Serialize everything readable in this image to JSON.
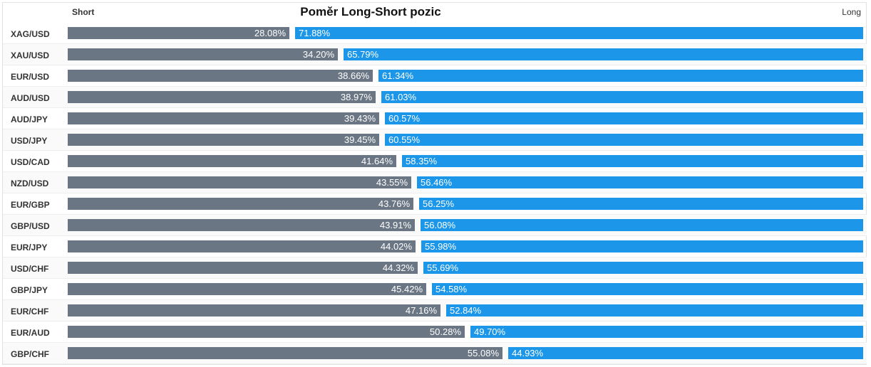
{
  "header": {
    "title": "Poměr Long-Short pozic",
    "short_label": "Short",
    "long_label": "Long"
  },
  "colors": {
    "short": "#6b7685",
    "long": "#1b96e8"
  },
  "chart_data": {
    "type": "bar",
    "title": "Poměr Long-Short pozic",
    "orientation": "horizontal-stacked",
    "categories": [
      "XAG/USD",
      "XAU/USD",
      "EUR/USD",
      "AUD/USD",
      "AUD/JPY",
      "USD/JPY",
      "USD/CAD",
      "NZD/USD",
      "EUR/GBP",
      "GBP/USD",
      "EUR/JPY",
      "USD/CHF",
      "GBP/JPY",
      "EUR/CHF",
      "EUR/AUD",
      "GBP/CHF"
    ],
    "series": [
      {
        "name": "Short",
        "values": [
          28.08,
          34.2,
          38.66,
          38.97,
          39.43,
          39.45,
          41.64,
          43.55,
          43.76,
          43.91,
          44.02,
          44.32,
          45.42,
          47.16,
          50.28,
          55.08
        ],
        "labels": [
          "28.08%",
          "34.20%",
          "38.66%",
          "38.97%",
          "39.43%",
          "39.45%",
          "41.64%",
          "43.55%",
          "43.76%",
          "43.91%",
          "44.02%",
          "44.32%",
          "45.42%",
          "47.16%",
          "50.28%",
          "55.08%"
        ]
      },
      {
        "name": "Long",
        "values": [
          71.88,
          65.79,
          61.34,
          61.03,
          60.57,
          60.55,
          58.35,
          56.46,
          56.25,
          56.08,
          55.98,
          55.69,
          54.58,
          52.84,
          49.7,
          44.93
        ],
        "labels": [
          "71.88%",
          "65.79%",
          "61.34%",
          "61.03%",
          "60.57%",
          "60.55%",
          "58.35%",
          "56.46%",
          "56.25%",
          "56.08%",
          "55.98%",
          "55.69%",
          "54.58%",
          "52.84%",
          "49.70%",
          "44.93%"
        ]
      }
    ]
  }
}
